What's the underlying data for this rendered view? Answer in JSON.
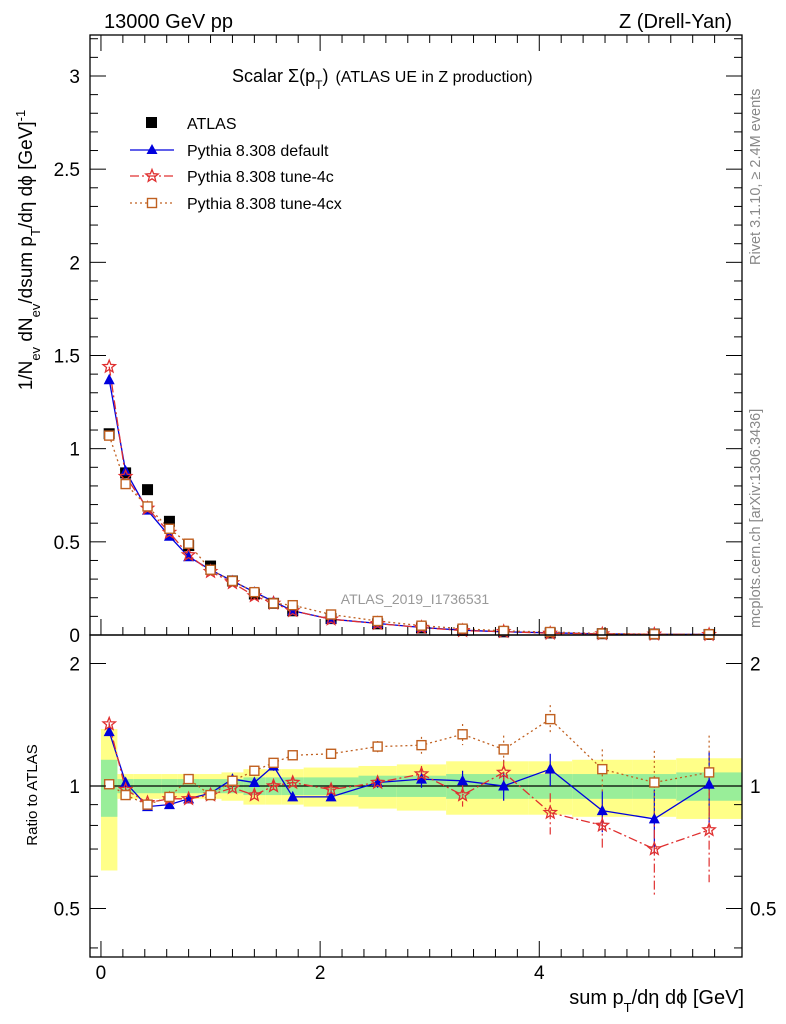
{
  "header": {
    "left": "13000 GeV pp",
    "right": "Z (Drell-Yan)"
  },
  "side_labels": {
    "rivet": "Rivet 3.1.10, ≥ 2.4M events",
    "mcplots": "mcplots.cern.ch [arXiv:1306.3436]"
  },
  "chart_data": [
    {
      "type": "scatter",
      "title_main": "Scalar Σ(p",
      "title_sub": "T",
      "title_close": ")",
      "title_rest": "(ATLAS UE in Z production)",
      "ylabel": "1/N_ev dN_ev/dsum p_T/dη dϕ [GeV]^-1",
      "xlim": [
        -0.1,
        5.85
      ],
      "ylim": [
        0,
        3.22
      ],
      "y_ticks": [
        0,
        0.5,
        1,
        1.5,
        2,
        2.5,
        3
      ],
      "y_tick_labels": [
        "0",
        "0.5",
        "1",
        "1.5",
        "2",
        "2.5",
        "3"
      ],
      "watermark": "ATLAS_2019_I1736531",
      "legend_position": "top-left",
      "x": [
        0.075,
        0.225,
        0.425,
        0.625,
        0.8,
        1.0,
        1.2,
        1.4,
        1.575,
        1.75,
        2.1,
        2.525,
        2.925,
        3.3,
        3.675,
        4.1,
        4.575,
        5.05,
        5.55
      ],
      "series": [
        {
          "name": "ATLAS",
          "color": "#000000",
          "marker": "square",
          "values": [
            1.08,
            0.87,
            0.78,
            0.61,
            0.48,
            0.37,
            0.29,
            0.22,
            0.17,
            0.13,
            0.088,
            0.06,
            0.038,
            0.025,
            0.017,
            0.011,
            0.007,
            0.005,
            0.003
          ]
        },
        {
          "name": "Pythia 8.308 default",
          "color": "#0000dd",
          "marker": "triangle",
          "dash": "",
          "values": [
            1.37,
            0.88,
            0.67,
            0.53,
            0.42,
            0.35,
            0.29,
            0.23,
            0.18,
            0.13,
            0.085,
            0.062,
            0.04,
            0.026,
            0.017,
            0.012,
            0.006,
            0.004,
            0.003
          ]
        },
        {
          "name": "Pythia 8.308 tune-4c",
          "color": "#e03030",
          "marker": "star",
          "dash": "9,3,2,3",
          "values": [
            1.44,
            0.85,
            0.68,
            0.55,
            0.43,
            0.34,
            0.28,
            0.21,
            0.17,
            0.13,
            0.085,
            0.061,
            0.04,
            0.023,
            0.018,
            0.009,
            0.006,
            0.004,
            0.002
          ]
        },
        {
          "name": "Pythia 8.308 tune-4cx",
          "color": "#c06020",
          "marker": "open-square",
          "dash": "2,3",
          "values": [
            1.07,
            0.81,
            0.69,
            0.57,
            0.49,
            0.35,
            0.29,
            0.23,
            0.17,
            0.16,
            0.11,
            0.075,
            0.05,
            0.034,
            0.022,
            0.016,
            0.008,
            0.005,
            0.004
          ]
        }
      ]
    },
    {
      "type": "line",
      "ylabel": "Ratio to ATLAS",
      "xlabel_main": "sum p",
      "xlabel_sub": "T",
      "xlabel_rest": "/dη dϕ [GeV]",
      "xlim": [
        -0.1,
        5.85
      ],
      "ylim": [
        0.38,
        2.35
      ],
      "x_ticks": [
        0,
        2,
        4
      ],
      "x_tick_labels": [
        "0",
        "2",
        "4"
      ],
      "y_ticks": [
        0.5,
        1,
        2
      ],
      "y_tick_labels": [
        "0.5",
        "1",
        "2"
      ],
      "x": [
        0.075,
        0.225,
        0.425,
        0.625,
        0.8,
        1.0,
        1.2,
        1.4,
        1.575,
        1.75,
        2.1,
        2.525,
        2.925,
        3.3,
        3.675,
        4.1,
        4.575,
        5.05,
        5.55
      ],
      "bin_edges": [
        0,
        0.15,
        0.3,
        0.55,
        0.7,
        0.9,
        1.1,
        1.3,
        1.5,
        1.65,
        1.85,
        2.35,
        2.7,
        3.15,
        3.45,
        3.9,
        4.3,
        4.85,
        5.25,
        5.85
      ],
      "band_inner": [
        0.16,
        0.04,
        0.04,
        0.04,
        0.04,
        0.04,
        0.04,
        0.05,
        0.05,
        0.05,
        0.05,
        0.06,
        0.06,
        0.07,
        0.07,
        0.07,
        0.07,
        0.07,
        0.08
      ],
      "band_outer": [
        0.38,
        0.07,
        0.07,
        0.07,
        0.07,
        0.07,
        0.08,
        0.1,
        0.1,
        0.1,
        0.11,
        0.12,
        0.13,
        0.15,
        0.15,
        0.15,
        0.16,
        0.16,
        0.17
      ],
      "series": [
        {
          "name": "Pythia 8.308 default",
          "color": "#0000dd",
          "marker": "triangle",
          "dash": "",
          "values": [
            1.36,
            1.02,
            0.89,
            0.9,
            0.93,
            0.96,
            1.04,
            1.02,
            1.12,
            0.94,
            0.94,
            1.02,
            1.04,
            1.03,
            1.0,
            1.1,
            0.87,
            0.83,
            1.01
          ],
          "errors": [
            0.02,
            0.02,
            0.02,
            0.02,
            0.02,
            0.02,
            0.02,
            0.02,
            0.03,
            0.02,
            0.02,
            0.03,
            0.05,
            0.06,
            0.08,
            0.1,
            0.1,
            0.15,
            0.2
          ]
        },
        {
          "name": "Pythia 8.308 tune-4c",
          "color": "#e03030",
          "marker": "star",
          "dash": "9,3,2,3",
          "values": [
            1.42,
            0.98,
            0.91,
            0.93,
            0.93,
            0.95,
            0.99,
            0.95,
            1.0,
            1.02,
            0.98,
            1.02,
            1.07,
            0.95,
            1.08,
            0.86,
            0.8,
            0.7,
            0.78
          ],
          "errors": [
            0.02,
            0.02,
            0.02,
            0.02,
            0.02,
            0.02,
            0.02,
            0.03,
            0.03,
            0.03,
            0.02,
            0.03,
            0.05,
            0.06,
            0.08,
            0.1,
            0.1,
            0.16,
            0.2
          ]
        },
        {
          "name": "Pythia 8.308 tune-4cx",
          "color": "#c06020",
          "marker": "open-square",
          "dash": "2,3",
          "values": [
            1.01,
            0.95,
            0.9,
            0.94,
            1.04,
            0.95,
            1.03,
            1.09,
            1.14,
            1.19,
            1.2,
            1.25,
            1.26,
            1.34,
            1.23,
            1.46,
            1.1,
            1.02,
            1.08
          ],
          "errors": [
            0.02,
            0.02,
            0.02,
            0.02,
            0.02,
            0.02,
            0.02,
            0.03,
            0.03,
            0.03,
            0.03,
            0.04,
            0.06,
            0.08,
            0.1,
            0.12,
            0.13,
            0.2,
            0.25
          ]
        }
      ]
    }
  ]
}
